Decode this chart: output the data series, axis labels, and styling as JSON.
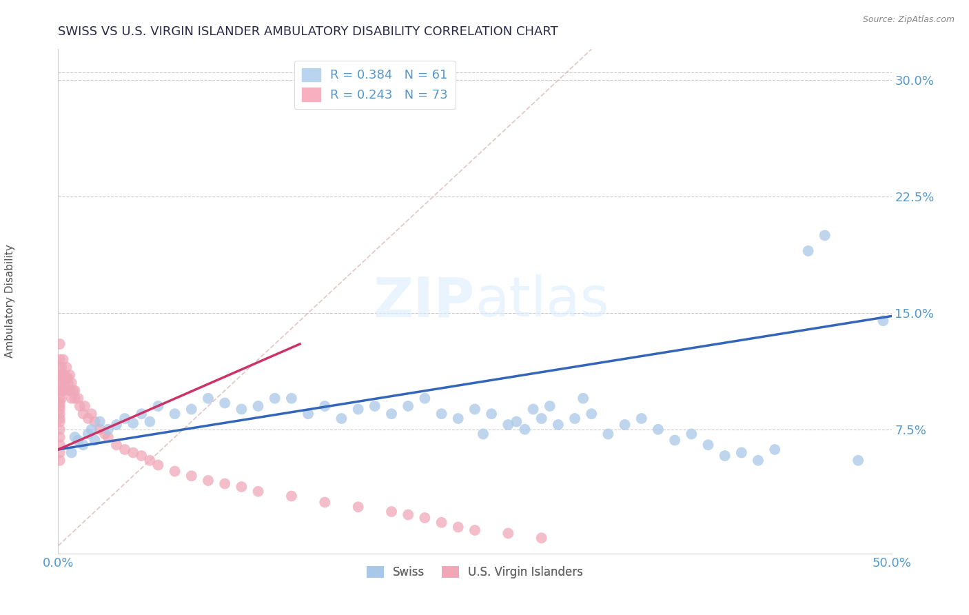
{
  "title": "SWISS VS U.S. VIRGIN ISLANDER AMBULATORY DISABILITY CORRELATION CHART",
  "source": "Source: ZipAtlas.com",
  "ylabel": "Ambulatory Disability",
  "xlim": [
    0.0,
    0.5
  ],
  "ylim": [
    -0.005,
    0.32
  ],
  "xticks": [
    0.0,
    0.125,
    0.25,
    0.375,
    0.5
  ],
  "xticklabels": [
    "0.0%",
    "",
    "",
    "",
    "50.0%"
  ],
  "yticks": [
    0.075,
    0.15,
    0.225,
    0.3
  ],
  "yticklabels": [
    "7.5%",
    "15.0%",
    "22.5%",
    "30.0%"
  ],
  "blue_R": 0.384,
  "blue_N": 61,
  "pink_R": 0.243,
  "pink_N": 73,
  "blue_color": "#a8c8e8",
  "pink_color": "#f0a8b8",
  "blue_line_color": "#3366bb",
  "pink_line_color": "#cc3366",
  "grid_color": "#cccccc",
  "title_color": "#2a2a4a",
  "axis_label_color": "#5599cc",
  "legend_swiss": "Swiss",
  "legend_usvi": "U.S. Virgin Islanders",
  "blue_scatter_x": [
    0.008,
    0.01,
    0.012,
    0.015,
    0.018,
    0.02,
    0.022,
    0.025,
    0.03,
    0.035,
    0.04,
    0.045,
    0.05,
    0.055,
    0.06,
    0.07,
    0.08,
    0.09,
    0.1,
    0.11,
    0.12,
    0.13,
    0.14,
    0.15,
    0.16,
    0.17,
    0.18,
    0.19,
    0.2,
    0.21,
    0.22,
    0.23,
    0.24,
    0.25,
    0.255,
    0.26,
    0.27,
    0.275,
    0.28,
    0.285,
    0.29,
    0.295,
    0.3,
    0.31,
    0.315,
    0.32,
    0.33,
    0.34,
    0.35,
    0.36,
    0.37,
    0.38,
    0.39,
    0.4,
    0.41,
    0.42,
    0.43,
    0.45,
    0.46,
    0.48,
    0.495
  ],
  "blue_scatter_y": [
    0.06,
    0.07,
    0.068,
    0.065,
    0.072,
    0.075,
    0.068,
    0.08,
    0.075,
    0.078,
    0.082,
    0.079,
    0.085,
    0.08,
    0.09,
    0.085,
    0.088,
    0.095,
    0.092,
    0.088,
    0.09,
    0.095,
    0.095,
    0.085,
    0.09,
    0.082,
    0.088,
    0.09,
    0.085,
    0.09,
    0.095,
    0.085,
    0.082,
    0.088,
    0.072,
    0.085,
    0.078,
    0.08,
    0.075,
    0.088,
    0.082,
    0.09,
    0.078,
    0.082,
    0.095,
    0.085,
    0.072,
    0.078,
    0.082,
    0.075,
    0.068,
    0.072,
    0.065,
    0.058,
    0.06,
    0.055,
    0.062,
    0.19,
    0.2,
    0.055,
    0.145
  ],
  "pink_scatter_x": [
    0.001,
    0.001,
    0.001,
    0.001,
    0.001,
    0.001,
    0.001,
    0.001,
    0.001,
    0.001,
    0.001,
    0.001,
    0.001,
    0.001,
    0.001,
    0.001,
    0.001,
    0.001,
    0.002,
    0.002,
    0.002,
    0.002,
    0.002,
    0.003,
    0.003,
    0.003,
    0.004,
    0.004,
    0.005,
    0.005,
    0.005,
    0.006,
    0.006,
    0.007,
    0.007,
    0.008,
    0.008,
    0.009,
    0.01,
    0.01,
    0.012,
    0.013,
    0.015,
    0.016,
    0.018,
    0.02,
    0.022,
    0.025,
    0.028,
    0.03,
    0.035,
    0.04,
    0.045,
    0.05,
    0.055,
    0.06,
    0.07,
    0.08,
    0.09,
    0.1,
    0.11,
    0.12,
    0.14,
    0.16,
    0.18,
    0.2,
    0.21,
    0.22,
    0.23,
    0.24,
    0.25,
    0.27,
    0.29
  ],
  "pink_scatter_y": [
    0.055,
    0.06,
    0.065,
    0.07,
    0.075,
    0.08,
    0.082,
    0.085,
    0.088,
    0.09,
    0.092,
    0.095,
    0.1,
    0.105,
    0.11,
    0.115,
    0.12,
    0.13,
    0.095,
    0.1,
    0.105,
    0.11,
    0.115,
    0.1,
    0.11,
    0.12,
    0.105,
    0.11,
    0.1,
    0.108,
    0.115,
    0.105,
    0.108,
    0.1,
    0.11,
    0.095,
    0.105,
    0.1,
    0.095,
    0.1,
    0.095,
    0.09,
    0.085,
    0.09,
    0.082,
    0.085,
    0.08,
    0.075,
    0.072,
    0.07,
    0.065,
    0.062,
    0.06,
    0.058,
    0.055,
    0.052,
    0.048,
    0.045,
    0.042,
    0.04,
    0.038,
    0.035,
    0.032,
    0.028,
    0.025,
    0.022,
    0.02,
    0.018,
    0.015,
    0.012,
    0.01,
    0.008,
    0.005
  ],
  "blue_line_x": [
    0.0,
    0.5
  ],
  "blue_line_y": [
    0.062,
    0.148
  ],
  "pink_line_x": [
    0.0,
    0.145
  ],
  "pink_line_y": [
    0.062,
    0.13
  ],
  "ref_line_x": [
    0.0,
    0.32
  ],
  "ref_line_y": [
    0.0,
    0.32
  ]
}
